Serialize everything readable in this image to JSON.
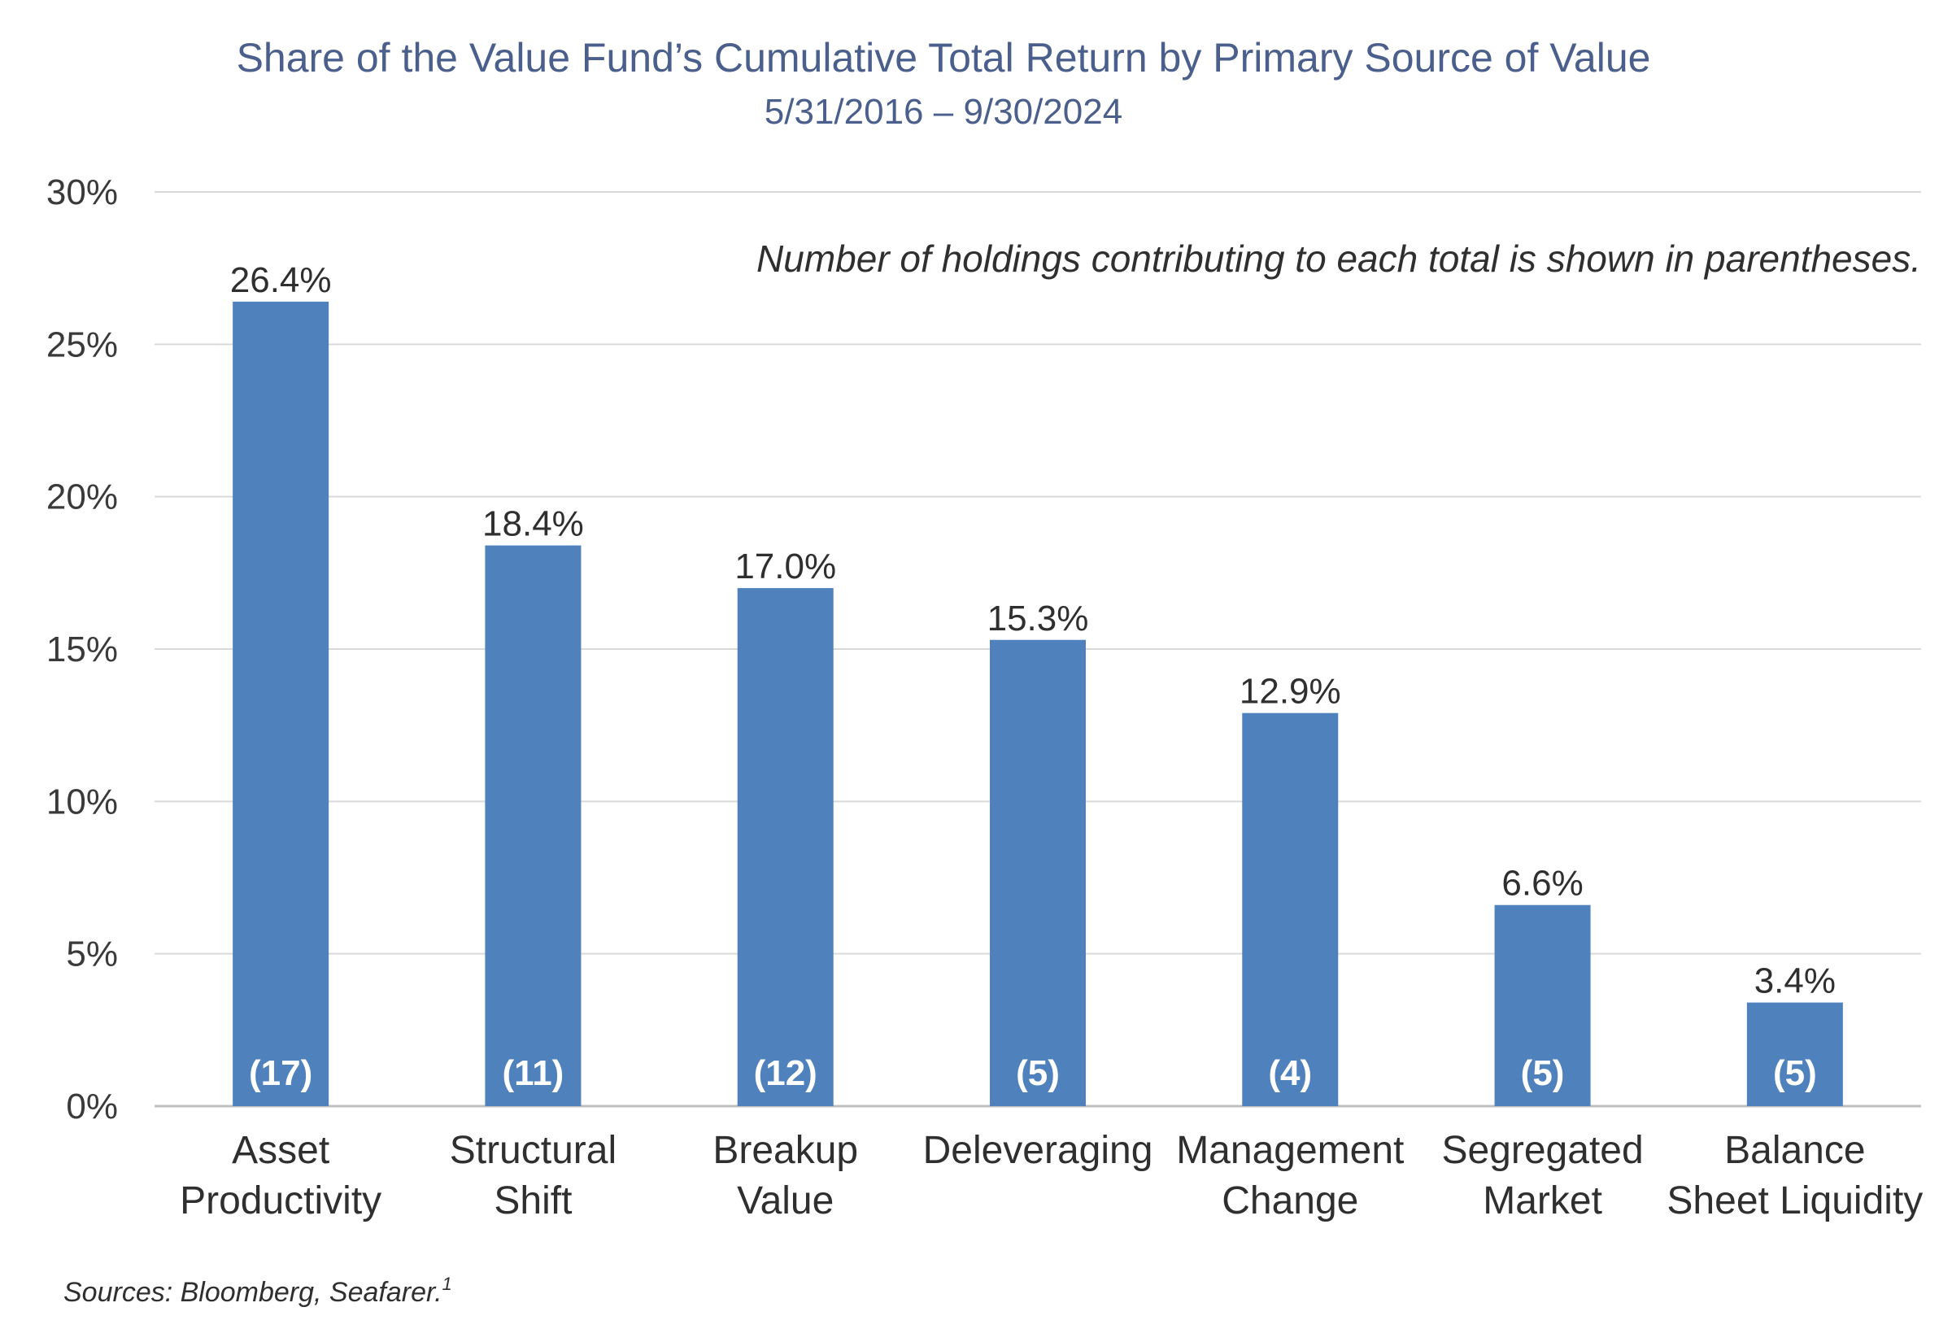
{
  "chart_data": {
    "type": "bar",
    "title": "Share of the Value Fund’s Cumulative Total Return by Primary Source of Value",
    "subtitle": "5/31/2016 – 9/30/2024",
    "xlabel": "",
    "ylabel": "",
    "ylim": [
      0,
      30
    ],
    "yticks": [
      0,
      5,
      10,
      15,
      20,
      25,
      30
    ],
    "ytick_labels": [
      "0%",
      "5%",
      "10%",
      "15%",
      "20%",
      "25%",
      "30%"
    ],
    "grid": true,
    "categories": [
      [
        "Asset",
        "Productivity"
      ],
      [
        "Structural",
        "Shift"
      ],
      [
        "Breakup",
        "Value"
      ],
      [
        "Deleveraging"
      ],
      [
        "Management",
        "Change"
      ],
      [
        "Segregated",
        "Market"
      ],
      [
        "Balance",
        "Sheet Liquidity"
      ]
    ],
    "values": [
      26.4,
      18.4,
      17.0,
      15.3,
      12.9,
      6.6,
      3.4
    ],
    "value_labels": [
      "26.4%",
      "18.4%",
      "17.0%",
      "15.3%",
      "12.9%",
      "6.6%",
      "3.4%"
    ],
    "holdings": [
      17,
      11,
      12,
      5,
      4,
      5,
      5
    ],
    "holdings_labels": [
      "(17)",
      "(11)",
      "(12)",
      "(5)",
      "(4)",
      "(5)",
      "(5)"
    ],
    "annotation": "Number of holdings contributing to each total is shown in parentheses.",
    "source": "Sources: Bloomberg, Seafarer.",
    "source_footnote": "1",
    "colors": {
      "bar": "#4f81bd",
      "grid": "#d9d9d9",
      "axis": "#bfbfbf",
      "title": "#4a5f8c"
    }
  }
}
